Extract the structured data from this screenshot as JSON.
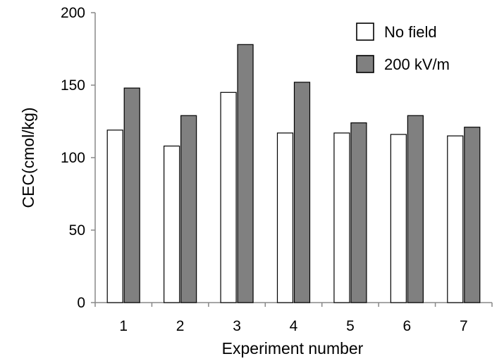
{
  "chart_data": {
    "type": "bar",
    "categories": [
      "1",
      "2",
      "3",
      "4",
      "5",
      "6",
      "7"
    ],
    "series": [
      {
        "name": "No field",
        "color": "#ffffff",
        "values": [
          119,
          108,
          145,
          117,
          117,
          116,
          115
        ]
      },
      {
        "name": "200 kV/m",
        "color": "#808080",
        "values": [
          148,
          129,
          178,
          152,
          124,
          129,
          121
        ]
      }
    ],
    "title": "",
    "xlabel": "Experiment number",
    "ylabel": "CEC(cmol/kg)",
    "ylim": [
      0,
      200
    ],
    "yticks": [
      0,
      50,
      100,
      150,
      200
    ],
    "grid": false,
    "legend_position": "top-right"
  }
}
